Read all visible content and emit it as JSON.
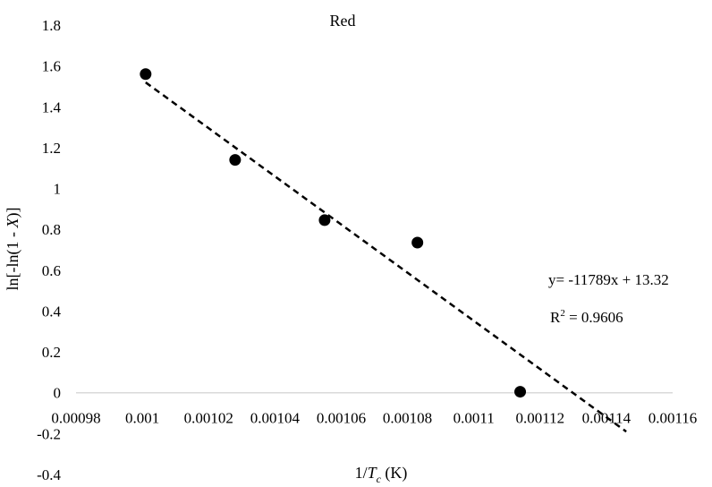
{
  "chart_data": {
    "type": "scatter",
    "title": "Red",
    "xlabel": "1/T_c (K)",
    "xlabel_parts": {
      "pre": "1/",
      "italic": "T",
      "sub": "c",
      "post": " (K)"
    },
    "ylabel": "ln[-ln(1 - X)]",
    "ylabel_parts": {
      "pre": "ln[-ln(1 - ",
      "italic": "X",
      "post": ")]"
    },
    "xlim": [
      0.00098,
      0.00116
    ],
    "ylim": [
      -0.4,
      1.8
    ],
    "x_ticks": [
      0.00098,
      0.001,
      0.00102,
      0.00104,
      0.00106,
      0.00108,
      0.0011,
      0.00112,
      0.00114,
      0.00116
    ],
    "x_tick_labels": [
      "0.00098",
      "0.001",
      "0.00102",
      "0.00104",
      "0.00106",
      "0.00108",
      "0.0011",
      "0.00112",
      "0.00114",
      "0.00116"
    ],
    "y_ticks": [
      -0.4,
      -0.2,
      0,
      0.2,
      0.4,
      0.6,
      0.8,
      1,
      1.2,
      1.4,
      1.6,
      1.8
    ],
    "y_tick_labels": [
      "-0.4",
      "-0.2",
      "0",
      "0.2",
      "0.4",
      "0.6",
      "0.8",
      "1",
      "1.2",
      "1.4",
      "1.6",
      "1.8"
    ],
    "grid": false,
    "series": [
      {
        "x": [
          0.001001,
          0.001028,
          0.001055,
          0.001083,
          0.001114
        ],
        "y": [
          1.56,
          1.14,
          0.845,
          0.735,
          0.005
        ]
      }
    ],
    "trendline": {
      "slope": -11789,
      "intercept": 13.32,
      "x_range": [
        0.001001,
        0.001146
      ],
      "style": "dashed"
    },
    "annotations": {
      "equation": "y= -11789x + 13.32",
      "r2_prefix": "R",
      "r2_sup": "2",
      "r2_value": " = 0.9606"
    },
    "colors": {
      "marker": "#000000",
      "trendline": "#000000",
      "zero_line": "#d9d9d9"
    }
  }
}
